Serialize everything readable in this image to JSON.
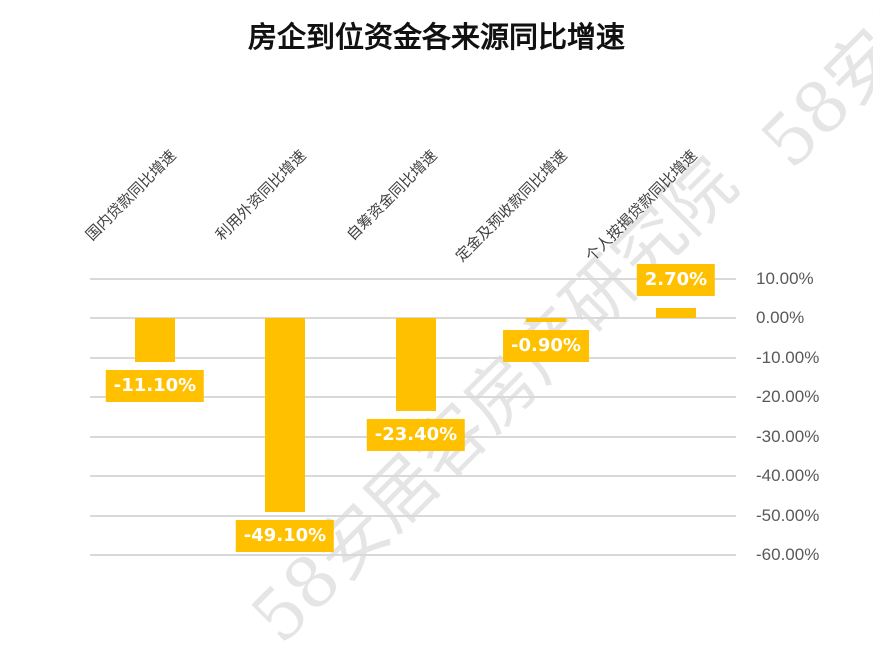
{
  "title": "房企到位资金各来源同比增速",
  "watermark": "58安居客房产研究院",
  "colors": {
    "bar": "#FFC000",
    "grid": "#d9d9d9",
    "tick_text": "#595959",
    "title": "#111111",
    "label_text": "#ffffff"
  },
  "chart_data": {
    "type": "bar",
    "title": "房企到位资金各来源同比增速",
    "categories": [
      "国内贷款同比增速",
      "利用外资同比增速",
      "自筹资金同比增速",
      "定金及预收款同比增速",
      "个人按揭贷款同比增速"
    ],
    "values": [
      -11.1,
      -49.1,
      -23.4,
      -0.9,
      2.7
    ],
    "value_labels": [
      "-11.10%",
      "-49.10%",
      "-23.40%",
      "-0.90%",
      "2.70%"
    ],
    "xlabel": "",
    "ylabel": "",
    "ylim": [
      -60,
      10
    ],
    "y_ticks": [
      "10.00%",
      "0.00%",
      "-10.00%",
      "-20.00%",
      "-30.00%",
      "-40.00%",
      "-50.00%",
      "-60.00%"
    ],
    "y_axis_position": "right",
    "grid": true,
    "legend": "none"
  }
}
